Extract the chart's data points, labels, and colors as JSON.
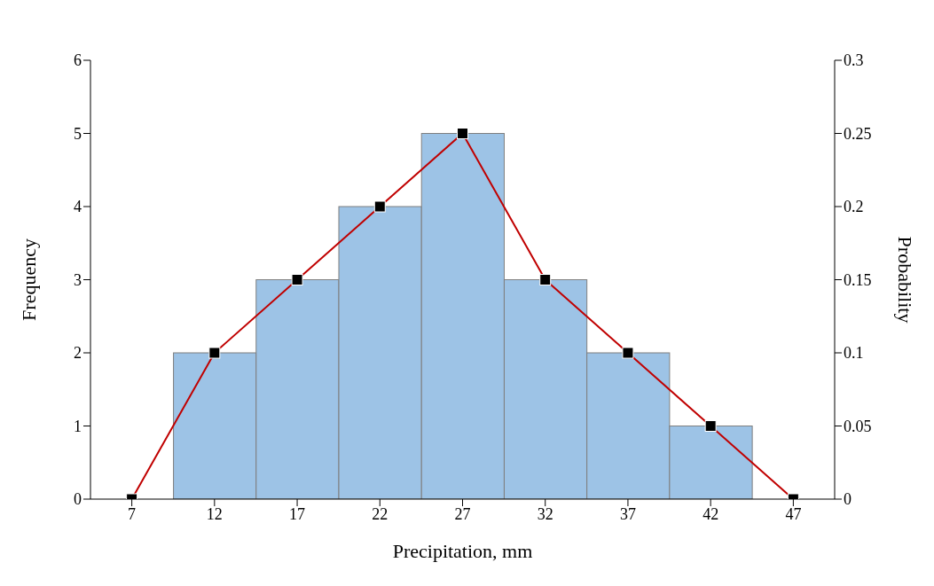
{
  "chart_data": {
    "type": "histogram",
    "xlabel": "Precipitation, mm",
    "ylabel": "Frequency",
    "y2label": "Probability",
    "bins": [
      9.5,
      14.5,
      19.5,
      24.5,
      29.5,
      34.5,
      39.5,
      44.5
    ],
    "series": [
      {
        "color": "#9dc3e6",
        "values": [
          2,
          3,
          4,
          5,
          3,
          2,
          1
        ]
      },
      {
        "type": "line",
        "axis": "y2",
        "color": "#c00000",
        "marker": "square",
        "x": [
          7,
          12,
          17,
          22,
          27,
          32,
          37,
          42,
          47
        ],
        "values": [
          0,
          0.1,
          0.15,
          0.2,
          0.25,
          0.15,
          0.1,
          0.05,
          0
        ]
      }
    ],
    "xlim": [
      4.5,
      49.5
    ],
    "xticks": [
      7,
      12,
      17,
      22,
      27,
      32,
      37,
      42,
      47
    ],
    "ylim": [
      0,
      6
    ],
    "yticks": [
      0,
      1,
      2,
      3,
      4,
      5,
      6
    ],
    "y2lim": [
      0,
      0.3
    ],
    "y2ticks": [
      0,
      0.05,
      0.1,
      0.15,
      0.2,
      0.25,
      0.3
    ]
  }
}
